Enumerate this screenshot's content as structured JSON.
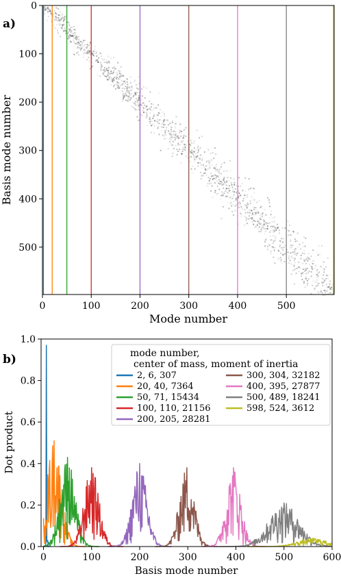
{
  "figure": {
    "panel_a_label": "a)",
    "panel_b_label": "b)"
  },
  "chart_data": [
    {
      "type": "heatmap",
      "panel": "a)",
      "xlabel": "Mode number",
      "ylabel": "Basis mode number",
      "xlim": [
        0,
        598
      ],
      "ylim": [
        0,
        598
      ],
      "y_inverted": true,
      "xticks": [
        0,
        100,
        200,
        300,
        400,
        500
      ],
      "yticks": [
        0,
        100,
        200,
        300,
        400,
        500
      ],
      "colormap": "greys",
      "description_of_values": "diagonal band",
      "grid": false,
      "highlighted_modes": [
        {
          "mode": 2,
          "color": "#1f77b4"
        },
        {
          "mode": 20,
          "color": "#ff7f0e"
        },
        {
          "mode": 50,
          "color": "#2ca02c"
        },
        {
          "mode": 100,
          "color": "#d62728"
        },
        {
          "mode": 200,
          "color": "#9467bd"
        },
        {
          "mode": 300,
          "color": "#8c564b"
        },
        {
          "mode": 400,
          "color": "#e377c2"
        },
        {
          "mode": 500,
          "color": "#7f7f7f"
        },
        {
          "mode": 598,
          "color": "#bcbd22"
        }
      ]
    },
    {
      "type": "line",
      "panel": "b)",
      "xlabel": "Basis mode number",
      "ylabel": "Dot product",
      "xlim": [
        -5,
        600
      ],
      "ylim": [
        0,
        1.0
      ],
      "xticks": [
        0,
        100,
        200,
        300,
        400,
        500,
        600
      ],
      "yticks": [
        0.0,
        0.2,
        0.4,
        0.6,
        0.8,
        1.0
      ],
      "ytick_labels": [
        "0.0",
        "0.2",
        "0.4",
        "0.6",
        "0.8",
        "1.0"
      ],
      "grid": false,
      "legend": {
        "title_line1": "mode number,",
        "title_line2": "center of mass, moment of inertia",
        "placement": "top-right",
        "columns": 2
      },
      "series": [
        {
          "name": "2, 6, 307",
          "mode": 2,
          "center": 6,
          "peak": 0.97,
          "color": "#1f77b4"
        },
        {
          "name": "20, 40, 7364",
          "mode": 20,
          "center": 22,
          "peak": 0.51,
          "color": "#ff7f0e"
        },
        {
          "name": "50, 71, 15434",
          "mode": 50,
          "center": 50,
          "peak": 0.43,
          "color": "#2ca02c"
        },
        {
          "name": "100, 110, 21156",
          "mode": 100,
          "center": 100,
          "peak": 0.38,
          "color": "#d62728"
        },
        {
          "name": "200, 205, 28281",
          "mode": 200,
          "center": 200,
          "peak": 0.4,
          "color": "#9467bd"
        },
        {
          "name": "300, 304, 32182",
          "mode": 300,
          "center": 298,
          "peak": 0.38,
          "color": "#8c564b"
        },
        {
          "name": "400, 395, 27877",
          "mode": 400,
          "center": 395,
          "peak": 0.38,
          "color": "#e377c2"
        },
        {
          "name": "500, 489, 18241",
          "mode": 500,
          "center": 500,
          "peak": 0.21,
          "color": "#7f7f7f"
        },
        {
          "name": "598, 524, 3612",
          "mode": 598,
          "center": 560,
          "peak": 0.04,
          "color": "#bcbd22"
        }
      ]
    }
  ]
}
